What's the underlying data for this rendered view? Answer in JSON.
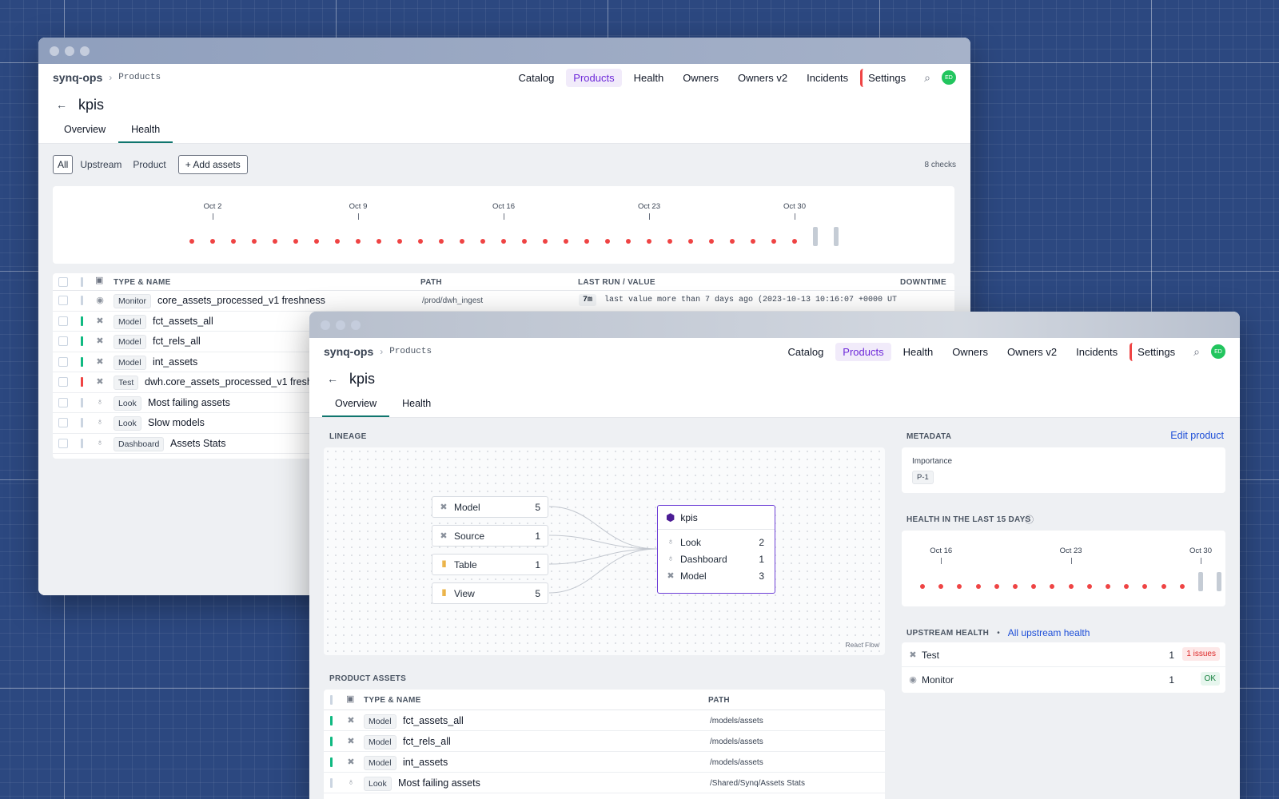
{
  "back_window": {
    "brand": "synq-ops",
    "crumb": "Products",
    "nav": [
      "Catalog",
      "Products",
      "Health",
      "Owners",
      "Owners v2",
      "Incidents",
      "Settings"
    ],
    "avatar": "ED",
    "title": "kpis",
    "tabs": [
      "Overview",
      "Health"
    ],
    "filters": [
      "All",
      "Upstream",
      "Product"
    ],
    "add_assets": "Add assets",
    "checks": "8 checks",
    "timeline": {
      "ticks": [
        "Oct 2",
        "Oct 9",
        "Oct 16",
        "Oct 23",
        "Oct 30"
      ],
      "red_days": 30,
      "no_data_days": 2
    },
    "columns": [
      "TYPE & NAME",
      "PATH",
      "LAST RUN / VALUE",
      "DOWNTIME"
    ],
    "rows": [
      {
        "status": "n",
        "icon": "monitor-icon",
        "type": "Monitor",
        "name": "core_assets_processed_v1 freshness",
        "path": "/prod/dwh_ingest",
        "run": "7m",
        "value": "last value more than 7 days ago (2023-10-13 10:16:07 +0000 UT"
      },
      {
        "status": "g",
        "icon": "model-icon",
        "type": "Model",
        "name": "fct_assets_all"
      },
      {
        "status": "g",
        "icon": "model-icon",
        "type": "Model",
        "name": "fct_rels_all"
      },
      {
        "status": "g",
        "icon": "model-icon",
        "type": "Model",
        "name": "int_assets"
      },
      {
        "status": "r",
        "icon": "model-icon",
        "type": "Test",
        "name": "dwh.core_assets_processed_v1 freshne"
      },
      {
        "status": "n",
        "icon": "look-icon",
        "type": "Look",
        "name": "Most failing assets"
      },
      {
        "status": "n",
        "icon": "look-icon",
        "type": "Look",
        "name": "Slow models"
      },
      {
        "status": "n",
        "icon": "look-icon",
        "type": "Dashboard",
        "name": "Assets Stats"
      }
    ]
  },
  "front_window": {
    "brand": "synq-ops",
    "crumb": "Products",
    "nav": [
      "Catalog",
      "Products",
      "Health",
      "Owners",
      "Owners v2",
      "Incidents",
      "Settings"
    ],
    "avatar": "ED",
    "title": "kpis",
    "tabs": [
      "Overview",
      "Health"
    ],
    "lineage": {
      "label": "LINEAGE",
      "watermark": "React Flow",
      "sources": [
        {
          "icon": "model-icon",
          "name": "Model",
          "count": "5"
        },
        {
          "icon": "model-icon",
          "name": "Source",
          "count": "1"
        },
        {
          "icon": "table-icon",
          "name": "Table",
          "count": "1"
        },
        {
          "icon": "table-icon",
          "name": "View",
          "count": "5"
        }
      ],
      "target": {
        "name": "kpis",
        "items": [
          {
            "icon": "look-icon",
            "name": "Look",
            "count": "2"
          },
          {
            "icon": "look-icon",
            "name": "Dashboard",
            "count": "1"
          },
          {
            "icon": "model-icon",
            "name": "Model",
            "count": "3"
          }
        ]
      }
    },
    "metadata": {
      "label": "METADATA",
      "edit": "Edit product",
      "importance_label": "Importance",
      "importance": "P-1"
    },
    "health": {
      "label": "HEALTH IN THE LAST 15 DAYS",
      "ticks": [
        "Oct 16",
        "Oct 23",
        "Oct 30"
      ],
      "red_days": 15,
      "no_data_days": 2
    },
    "upstream": {
      "label": "UPSTREAM HEALTH",
      "link": "All upstream health",
      "rows": [
        {
          "icon": "model-icon",
          "name": "Test",
          "count": "1",
          "badge": "1 issues",
          "kind": "bad"
        },
        {
          "icon": "monitor-icon",
          "name": "Monitor",
          "count": "1",
          "badge": "OK",
          "kind": "ok"
        }
      ]
    },
    "assets": {
      "label": "PRODUCT ASSETS",
      "columns": [
        "TYPE & NAME",
        "PATH"
      ],
      "rows": [
        {
          "status": "g",
          "icon": "model-icon",
          "type": "Model",
          "name": "fct_assets_all",
          "path": "/models/assets"
        },
        {
          "status": "g",
          "icon": "model-icon",
          "type": "Model",
          "name": "fct_rels_all",
          "path": "/models/assets"
        },
        {
          "status": "g",
          "icon": "model-icon",
          "type": "Model",
          "name": "int_assets",
          "path": "/models/assets"
        },
        {
          "status": "n",
          "icon": "look-icon",
          "type": "Look",
          "name": "Most failing assets",
          "path": "/Shared/Synq/Assets Stats"
        }
      ]
    }
  }
}
